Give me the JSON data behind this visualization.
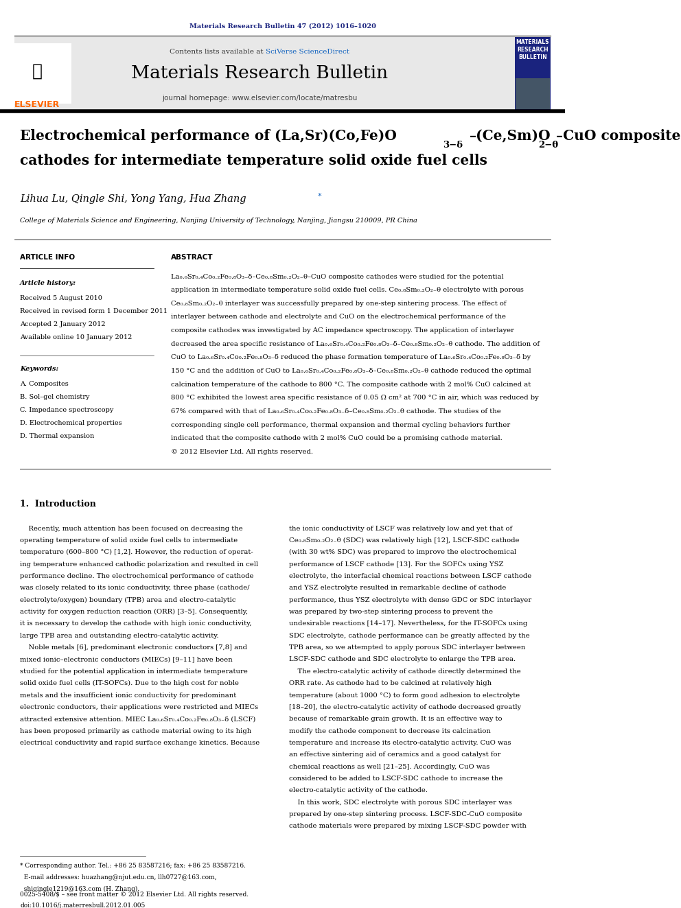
{
  "page_width": 9.92,
  "page_height": 13.23,
  "bg_color": "#ffffff",
  "header_journal": "Materials Research Bulletin 47 (2012) 1016–1020",
  "header_color": "#1a237e",
  "journal_banner_bg": "#e8e8e8",
  "journal_name": "Materials Research Bulletin",
  "contents_text": "Contents lists available at ",
  "sciverse_text": "SciVerse ScienceDirect",
  "homepage_text": "journal homepage: www.elsevier.com/locate/matresbu",
  "title_line1": "Electrochemical performance of (La,Sr)(Co,Fe)O",
  "title_sub1": "3−δ",
  "title_mid": "–(Ce,Sm)O",
  "title_sub2": "2−θ",
  "title_end": "–CuO composite",
  "title_line2": "cathodes for intermediate temperature solid oxide fuel cells",
  "authors": "Lihua Lu, Qingle Shi, Yong Yang, Hua Zhang",
  "affiliation": "College of Materials Science and Engineering, Nanjing University of Technology, Nanjing, Jiangsu 210009, PR China",
  "article_info_header": "ARTICLE INFO",
  "abstract_header": "ABSTRACT",
  "article_history_label": "Article history:",
  "received1": "Received 5 August 2010",
  "received2": "Received in revised form 1 December 2011",
  "accepted": "Accepted 2 January 2012",
  "available": "Available online 10 January 2012",
  "keywords_label": "Keywords:",
  "keywords": [
    "A. Composites",
    "B. Sol–gel chemistry",
    "C. Impedance spectroscopy",
    "D. Electrochemical properties",
    "D. Thermal expansion"
  ],
  "abstract_text": "La₀.₆Sr₀.₄Co₀.₂Fe₀.₈O₃₋δ–Ce₀.₈Sm₀.₂O₂₋θ–CuO composite cathodes were studied for the potential application in intermediate temperature solid oxide fuel cells. Ce₀.₈Sm₀.₂O₂₋θ electrolyte with porous Ce₀.₈Sm₀.₂O₂₋θ interlayer was successfully prepared by one-step sintering process. The effect of interlayer between cathode and electrolyte and CuO on the electrochemical performance of the composite cathodes was investigated by AC impedance spectroscopy. The application of interlayer decreased the area specific resistance of La₀.₆Sr₀.₄Co₀.₂Fe₀.₈O₃₋δ–Ce₀.₈Sm₀.₂O₂₋θ cathode. The addition of CuO to La₀.₆Sr₀.₄Co₀.₂Fe₀.₈O₃₋δ reduced the phase formation temperature of La₀.₆Sr₀.₄Co₀.₂Fe₀.₈O₃₋δ by 150 °C and the addition of CuO to La₀.₆Sr₀.₄Co₀.₂Fe₀.₈O₃₋δ–Ce₀.₈Sm₀.₂O₂₋θ cathode reduced the optimal calcination temperature of the cathode to 800 °C. The composite cathode with 2 mol% CuO calcined at 800 °C exhibited the lowest area specific resistance of 0.05 Ω cm² at 700 °C in air, which was reduced by 67% compared with that of La₀.₆Sr₀.₄Co₀.₂Fe₀.₈O₃₋δ–Ce₀.₈Sm₀.₂O₂₋θ cathode. The studies of the corresponding single cell performance, thermal expansion and thermal cycling behaviors further indicated that the composite cathode with 2 mol% CuO could be a promising cathode material.\n© 2012 Elsevier Ltd. All rights reserved.",
  "intro_header": "1.  Introduction",
  "intro_left": "Recently, much attention has been focused on decreasing the operating temperature of solid oxide fuel cells to intermediate temperature (600–800 °C) [1,2]. However, the reduction of operating temperature enhanced cathodic polarization and resulted in cell performance decline. The electrochemical performance of cathode was closely related to its ionic conductivity, three phase (cathode/electrolyte/oxygen) boundary (TPB) area and electro-catalytic activity for oxygen reduction reaction (ORR) [3–5]. Consequently, it is necessary to develop the cathode with high ionic conductivity, large TPB area and outstanding electro-catalytic activity.\n    Noble metals [6], predominant electronic conductors [7,8] and mixed ionic–electronic conductors (MIECs) [9–11] have been studied for the potential application in intermediate temperature solid oxide fuel cells (IT-SOFCs). Due to the high cost for noble metals and the insufficient ionic conductivity for predominant electronic conductors, their applications were restricted and MIECs attracted extensive attention. MIEC La₀.₆Sr₀.₄Co₀.₂Fe₀.₈O₃₋δ (LSCF) has been proposed primarily as cathode material owing to its high electrical conductivity and rapid surface exchange kinetics. Because",
  "intro_right": "the ionic conductivity of LSCF was relatively low and yet that of Ce₀.₈Sm₀.₂O₂₋θ (SDC) was relatively high [12], LSCF-SDC cathode (with 30 wt% SDC) was prepared to improve the electrochemical performance of LSCF cathode [13]. For the SOFCs using YSZ electrolyte, the interfacial chemical reactions between LSCF cathode and YSZ electrolyte resulted in remarkable decline of cathode performance, thus YSZ electrolyte with dense GDC or SDC interlayer was prepared by two-step sintering process to prevent the undesirable reactions [14–17]. Nevertheless, for the IT-SOFCs using SDC electrolyte, cathode performance can be greatly affected by the TPB area, so we attempted to apply porous SDC interlayer between LSCF-SDC cathode and SDC electrolyte to enlarge the TPB area.\n    The electro-catalytic activity of cathode directly determined the ORR rate. As cathode had to be calcined at relatively high temperature (about 1000 °C) to form good adhesion to electrolyte [18–20], the electro-catalytic activity of cathode decreased greatly because of remarkable grain growth. It is an effective way to modify the cathode component to decrease its calcination temperature and increase its electro-catalytic activity. CuO was an effective sintering aid of ceramics and a good catalyst for chemical reactions as well [21–25]. Accordingly, CuO was considered to be added to LSCF-SDC cathode to increase the electro-catalytic activity of the cathode.\n    In this work, SDC electrolyte with porous SDC interlayer was prepared by one-step sintering process. LSCF-SDC-CuO composite cathode materials were prepared by mixing LSCF-SDC powder with",
  "footnote_text": "* Corresponding author. Tel.: +86 25 83587216; fax: +86 25 83587216.\n  E-mail addresses: huazhang@njut.edu.cn, llh0727@163.com,\n  shiqingle1219@163.com (H. Zhang).",
  "copyright_text": "0025-5408/$ – see front matter © 2012 Elsevier Ltd. All rights reserved.\ndoi:10.1016/j.materresbull.2012.01.005",
  "divider_color": "#000000",
  "elsevier_orange": "#FF6600",
  "text_color": "#000000",
  "link_color": "#1565C0"
}
